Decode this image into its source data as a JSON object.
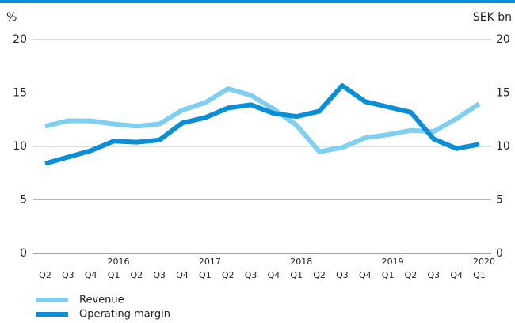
{
  "chart_data": {
    "type": "line",
    "ylabel": "%",
    "y2label": "SEK bn",
    "categories": [
      "Q2",
      "Q3",
      "Q4",
      "Q1",
      "Q2",
      "Q3",
      "Q4",
      "Q1",
      "Q2",
      "Q3",
      "Q4",
      "Q1",
      "Q2",
      "Q3",
      "Q4",
      "Q1",
      "Q2",
      "Q3",
      "Q4",
      "Q1"
    ],
    "years": [
      null,
      null,
      null,
      "2016",
      null,
      null,
      null,
      "2017",
      null,
      null,
      null,
      "2018",
      null,
      null,
      null,
      "2019",
      null,
      null,
      null,
      "2020"
    ],
    "series": [
      {
        "name": "Revenue",
        "color": "#7fcff0",
        "axis": "y2",
        "values": [
          11.9,
          12.4,
          12.4,
          12.1,
          11.9,
          12.1,
          13.4,
          14.1,
          15.4,
          14.8,
          13.5,
          12.0,
          9.5,
          9.9,
          10.8,
          11.1,
          11.5,
          11.4,
          12.6,
          14.0
        ]
      },
      {
        "name": "Operating margin",
        "color": "#0a8fd6",
        "values": [
          8.4,
          9.0,
          9.6,
          10.5,
          10.4,
          10.6,
          12.2,
          12.7,
          13.6,
          13.9,
          13.1,
          12.8,
          13.3,
          15.7,
          14.2,
          13.7,
          13.2,
          10.7,
          9.8,
          10.2
        ]
      }
    ],
    "ylim": [
      0,
      20
    ],
    "yticks": [
      0,
      5,
      10,
      15,
      20
    ],
    "y2lim": [
      0,
      20
    ],
    "y2ticks": [
      0,
      5,
      10,
      15,
      20
    ],
    "grid": true
  }
}
